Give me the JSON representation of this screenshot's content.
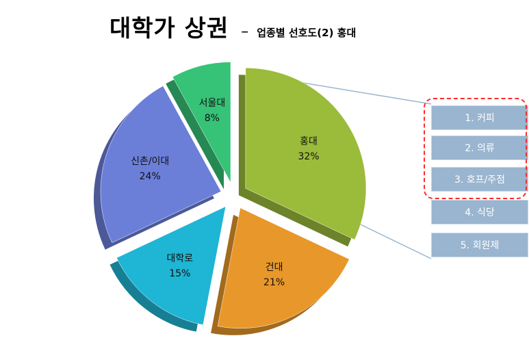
{
  "title": {
    "main": "대학가 상권",
    "dash": "–",
    "sub": "업종별 선호도(2) 홍대"
  },
  "chart_data": {
    "type": "pie",
    "series": [
      {
        "label": "홍대",
        "value": 32,
        "display": "32%",
        "color": "#9bbb3b"
      },
      {
        "label": "건대",
        "value": 21,
        "display": "21%",
        "color": "#e8972a"
      },
      {
        "label": "대학로",
        "value": 15,
        "display": "15%",
        "color": "#1fb5d4"
      },
      {
        "label": "신촌/이대",
        "value": 24,
        "display": "24%",
        "color": "#6b7fd9"
      },
      {
        "label": "서울대",
        "value": 8,
        "display": "8%",
        "color": "#36c277"
      }
    ]
  },
  "preferences": {
    "items": [
      "1. 커피",
      "2. 의류",
      "3. 호프/주점",
      "4. 식당",
      "5. 회원제"
    ],
    "box_color": "#9ab5cf",
    "highlight_color": "#ff2a2a"
  }
}
